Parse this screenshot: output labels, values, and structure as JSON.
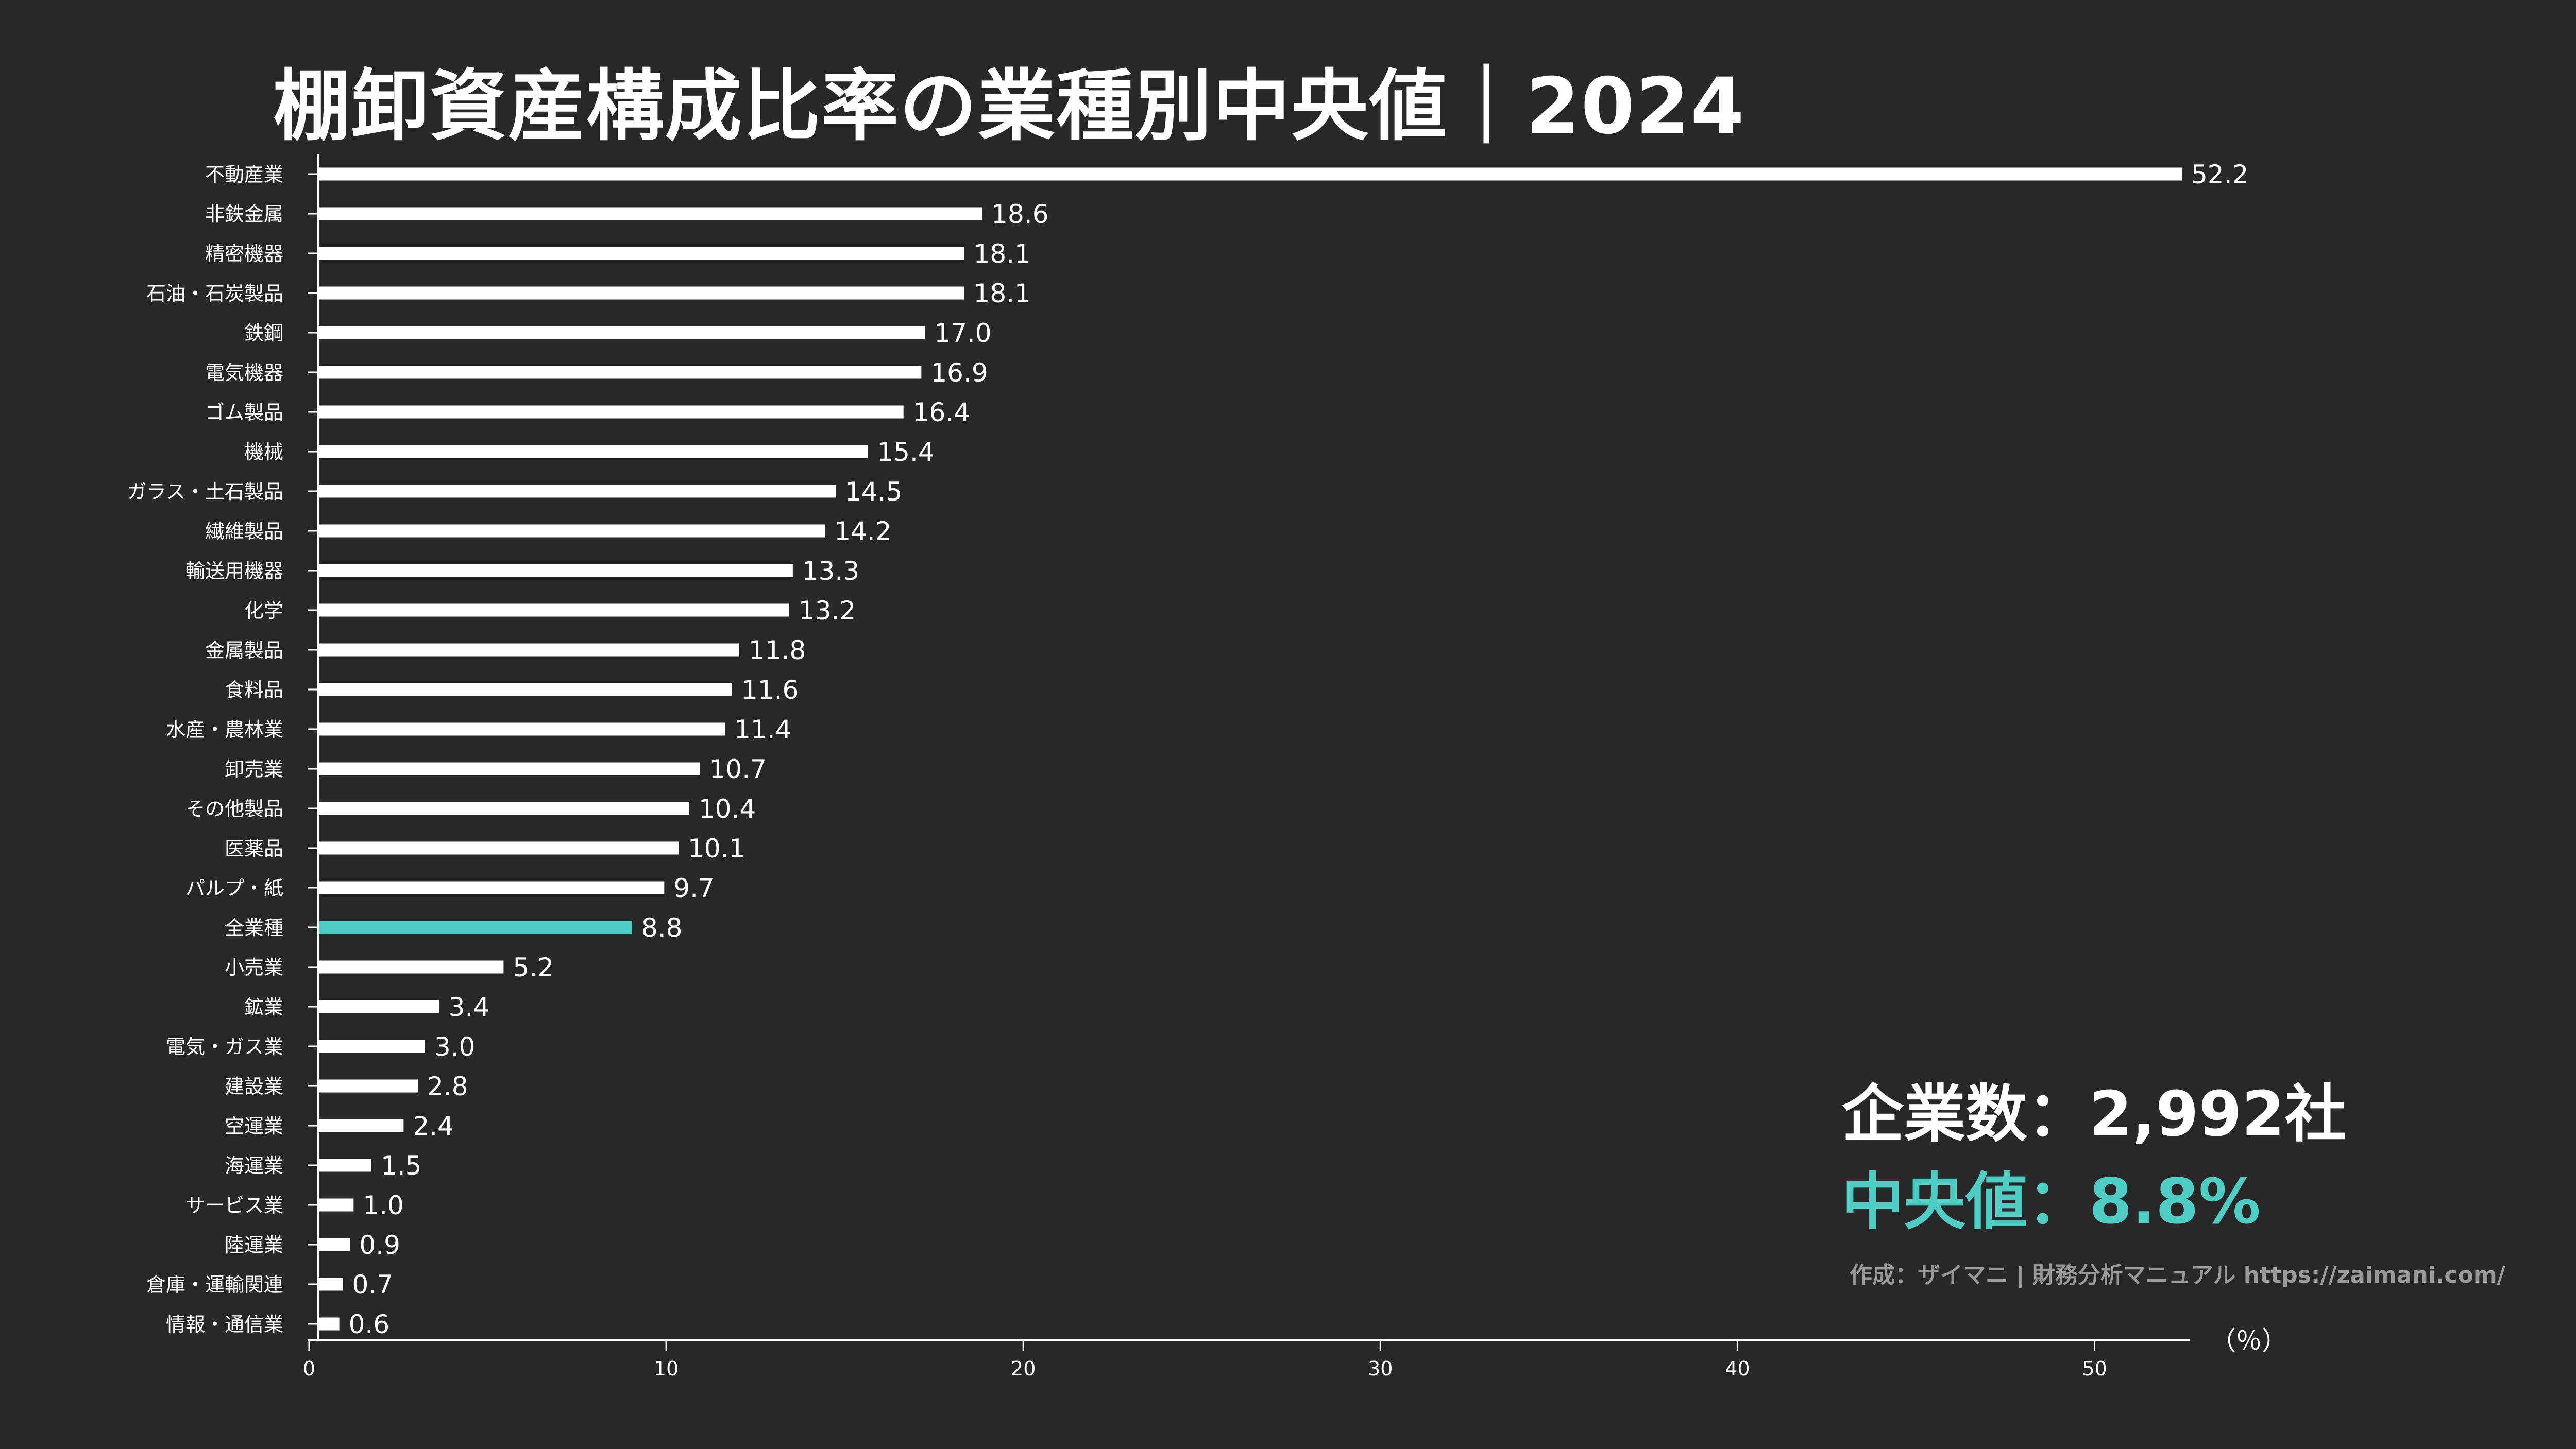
{
  "title": "棚卸資産構成比率の業種別中央値｜2024",
  "summary": {
    "company_count": "企業数：2,992社",
    "median": "中央値：8.8%"
  },
  "credit": "作成：ザイマニ | 財務分析マニュアル https://zaimani.com/",
  "colors": {
    "background": "#282828",
    "bar": "#ffffff",
    "highlight": "#4ecdc4",
    "credit": "#9a9a9a"
  },
  "chart_data": {
    "type": "bar",
    "orientation": "horizontal",
    "title": "棚卸資産構成比率の業種別中央値｜2024",
    "xlabel": "（％）",
    "xlim": [
      0,
      52.2
    ],
    "xticks": [
      0,
      10,
      20,
      30,
      40,
      50
    ],
    "grid": false,
    "highlight_category": "全業種",
    "categories": [
      "不動産業",
      "非鉄金属",
      "精密機器",
      "石油・石炭製品",
      "鉄鋼",
      "電気機器",
      "ゴム製品",
      "機械",
      "ガラス・土石製品",
      "繊維製品",
      "輸送用機器",
      "化学",
      "金属製品",
      "食料品",
      "水産・農林業",
      "卸売業",
      "その他製品",
      "医薬品",
      "パルプ・紙",
      "全業種",
      "小売業",
      "鉱業",
      "電気・ガス業",
      "建設業",
      "空運業",
      "海運業",
      "サービス業",
      "陸運業",
      "倉庫・運輸関連",
      "情報・通信業"
    ],
    "values": [
      52.2,
      18.6,
      18.1,
      18.1,
      17.0,
      16.9,
      16.4,
      15.4,
      14.5,
      14.2,
      13.3,
      13.2,
      11.8,
      11.6,
      11.4,
      10.7,
      10.4,
      10.1,
      9.7,
      8.8,
      5.2,
      3.4,
      3.0,
      2.8,
      2.4,
      1.5,
      1.0,
      0.9,
      0.7,
      0.6
    ]
  }
}
